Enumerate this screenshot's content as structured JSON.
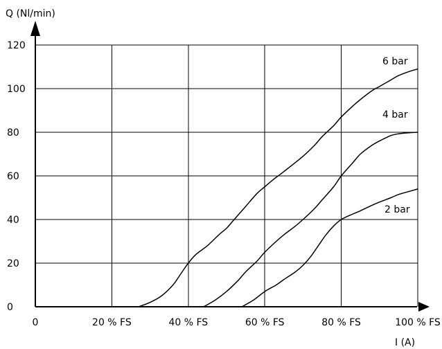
{
  "chart_data": {
    "type": "line",
    "title": "",
    "xlabel": "I (A)",
    "ylabel": "Q (Nl/min)",
    "x_tick_labels": [
      "0",
      "20 % FS",
      "40 % FS",
      "60 % FS",
      "80 % FS",
      "100 % FS"
    ],
    "y_tick_labels": [
      "0",
      "20",
      "40",
      "60",
      "80",
      "100",
      "120"
    ],
    "xlim": [
      0,
      100
    ],
    "ylim": [
      0,
      120
    ],
    "grid": true,
    "series": [
      {
        "name": "6 bar",
        "x": [
          27,
          30,
          33,
          36,
          38,
          40,
          42,
          45,
          48,
          50,
          52,
          55,
          58,
          60,
          62,
          65,
          70,
          73,
          75,
          78,
          80,
          83,
          85,
          88,
          90,
          93,
          95,
          98,
          100
        ],
        "y": [
          0,
          2,
          5,
          10,
          15,
          20,
          24,
          28,
          33,
          36,
          40,
          46,
          52,
          55,
          58,
          62,
          69,
          74,
          78,
          83,
          87,
          92,
          95,
          99,
          101,
          104,
          106,
          108,
          109
        ]
      },
      {
        "name": "4 bar",
        "x": [
          44,
          47,
          50,
          53,
          55,
          58,
          60,
          63,
          65,
          68,
          70,
          73,
          75,
          78,
          80,
          83,
          85,
          88,
          90,
          93,
          95,
          98,
          100
        ],
        "y": [
          0,
          3,
          7,
          12,
          16,
          21,
          25,
          30,
          33,
          37,
          40,
          45,
          49,
          55,
          60,
          66,
          70,
          74,
          76,
          78.5,
          79.3,
          79.8,
          80
        ]
      },
      {
        "name": "2 bar",
        "x": [
          54,
          57,
          60,
          63,
          65,
          68,
          70,
          72,
          74,
          76,
          78,
          80,
          83,
          85,
          88,
          90,
          93,
          95,
          98,
          100
        ],
        "y": [
          0,
          3,
          7,
          10,
          12.5,
          16,
          19,
          23,
          28,
          33,
          37,
          40,
          42.5,
          44,
          46.5,
          48,
          50,
          51.5,
          53,
          54
        ]
      }
    ]
  }
}
